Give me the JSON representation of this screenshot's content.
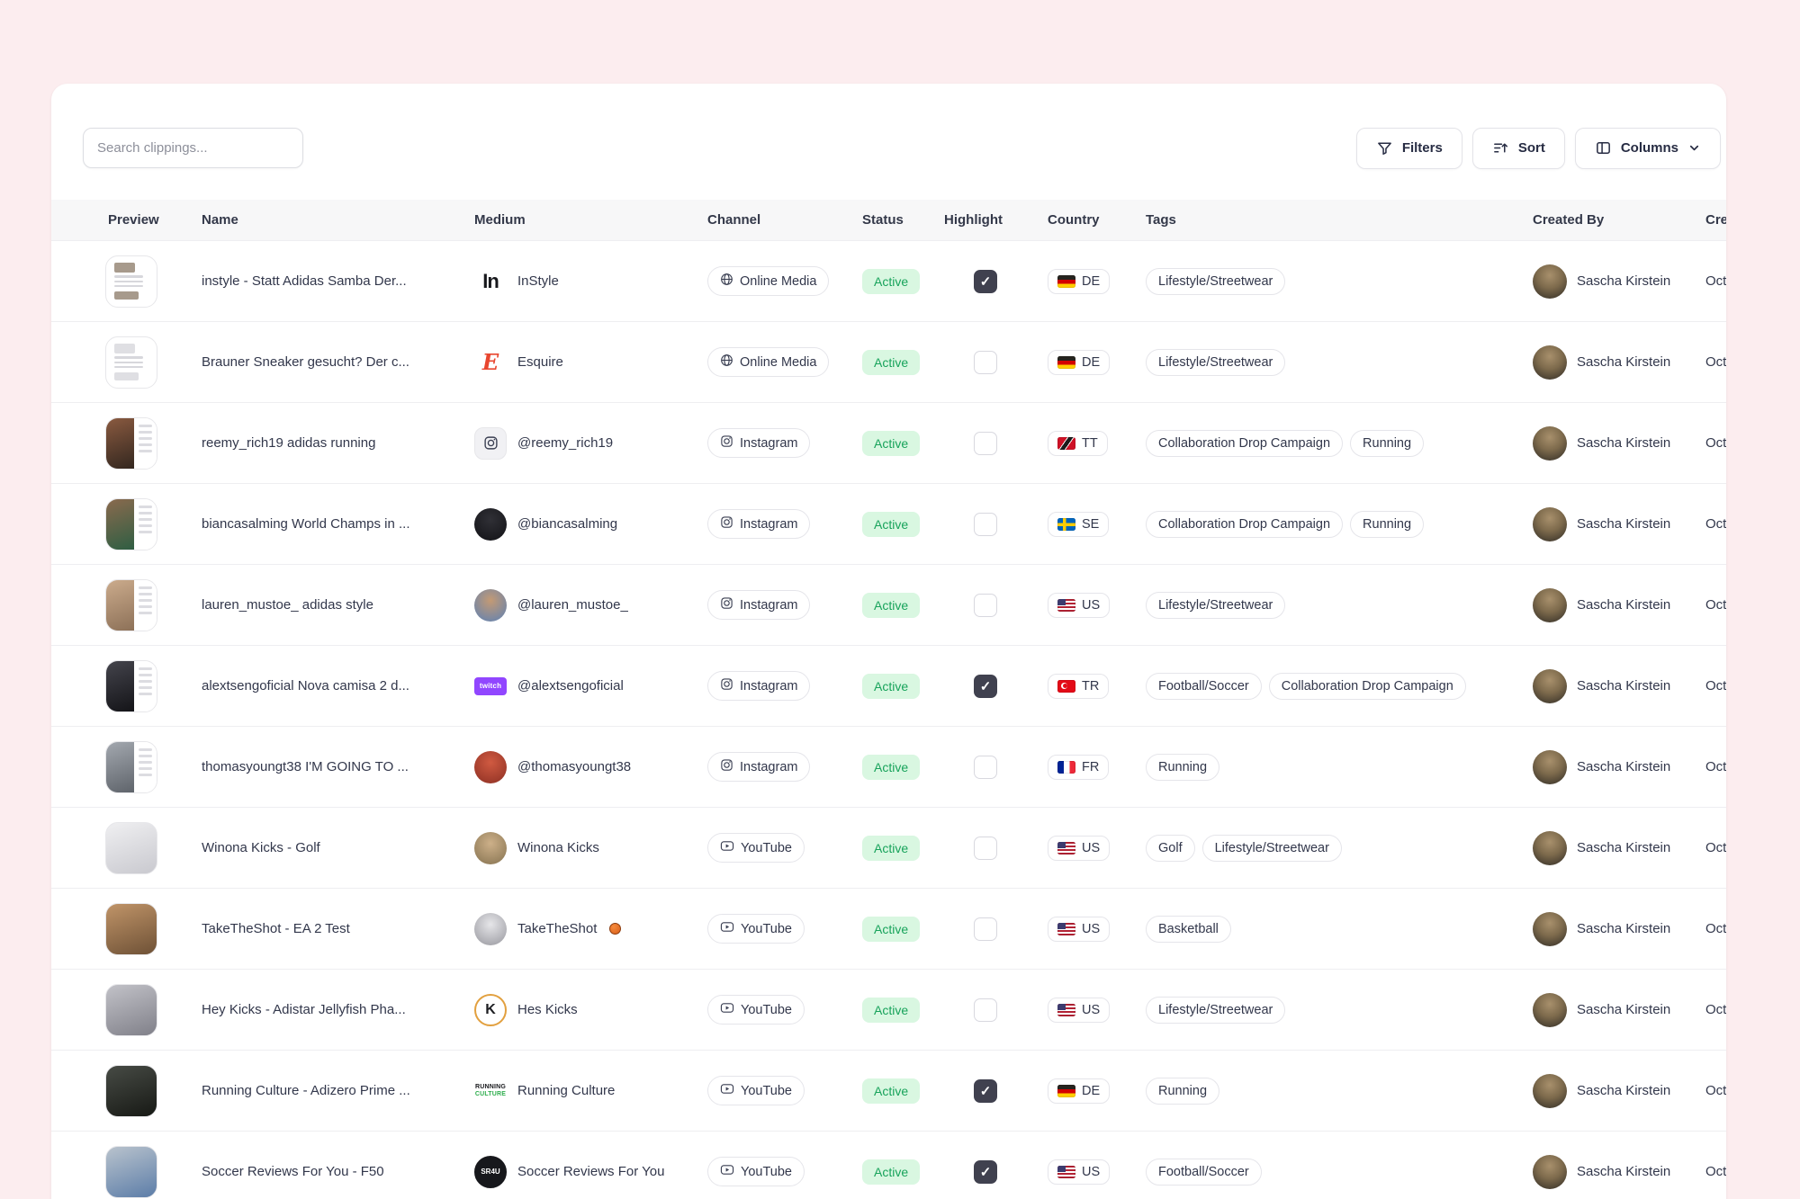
{
  "colors": {
    "page_bg": "#fcedef",
    "card_bg": "#ffffff",
    "text_primary": "#32374b",
    "text_header": "#333849",
    "thead_bg": "#f7f7f8",
    "row_border": "#eeeef1",
    "pill_border": "#e5e5ea",
    "status_bg": "#d9f7e1",
    "status_text": "#18a35b",
    "check_bg": "#40414f"
  },
  "icons": {
    "filters": "funnel-icon",
    "sort": "sort-lines-arrow-icon",
    "columns": "columns-layout-icon",
    "columns_chevron": "chevron-down-icon",
    "online_media": "globe-icon",
    "instagram": "instagram-icon",
    "youtube": "youtube-play-icon",
    "highlight_checked": "checkmark-icon"
  },
  "toolbar": {
    "search_placeholder": "Search clippings...",
    "filters_label": "Filters",
    "sort_label": "Sort",
    "columns_label": "Columns"
  },
  "table": {
    "columns": [
      "Preview",
      "Name",
      "Medium",
      "Channel",
      "Status",
      "Highlight",
      "Country",
      "Tags",
      "Created By",
      "Created At"
    ],
    "rows": [
      {
        "name": "instyle - Statt Adidas Samba Der...",
        "medium": "InStyle",
        "micon": {
          "kind": "text",
          "text": "In",
          "color": "#17181c"
        },
        "channel": "Online Media",
        "status": "Active",
        "highlight": true,
        "country": "DE",
        "tags": [
          "Lifestyle/Streetwear"
        ],
        "created_by": "Sascha Kirstein",
        "created_at": "Oct",
        "preview": {
          "kind": "article",
          "c1": "#a79a8c"
        }
      },
      {
        "name": "Brauner Sneaker gesucht? Der c...",
        "medium": "Esquire",
        "micon": {
          "kind": "serif",
          "text": "E",
          "color": "#e8462f"
        },
        "channel": "Online Media",
        "status": "Active",
        "highlight": false,
        "country": "DE",
        "tags": [
          "Lifestyle/Streetwear"
        ],
        "created_by": "Sascha Kirstein",
        "created_at": "Oct",
        "preview": {
          "kind": "article",
          "c1": "#dfdfe3"
        }
      },
      {
        "name": "reemy_rich19 adidas running",
        "medium": "@reemy_rich19",
        "micon": {
          "kind": "igbox"
        },
        "channel": "Instagram",
        "status": "Active",
        "highlight": false,
        "country": "TT",
        "tags": [
          "Collaboration Drop Campaign",
          "Running"
        ],
        "created_by": "Sascha Kirstein",
        "created_at": "Oct",
        "preview": {
          "kind": "split",
          "c1": "#8a5a40",
          "c2": "#33271f"
        }
      },
      {
        "name": "biancasalming World Champs in ...",
        "medium": "@biancasalming",
        "micon": {
          "kind": "avatar",
          "c1": "#303036",
          "c2": "#121216"
        },
        "channel": "Instagram",
        "status": "Active",
        "highlight": false,
        "country": "SE",
        "tags": [
          "Collaboration Drop Campaign",
          "Running"
        ],
        "created_by": "Sascha Kirstein",
        "created_at": "Oct",
        "preview": {
          "kind": "split",
          "c1": "#8a6a4e",
          "c2": "#2f5e43"
        }
      },
      {
        "name": "lauren_mustoe_ adidas style",
        "medium": "@lauren_mustoe_",
        "micon": {
          "kind": "avatar",
          "c1": "#c49a74",
          "c2": "#5c81b5"
        },
        "channel": "Instagram",
        "status": "Active",
        "highlight": false,
        "country": "US",
        "tags": [
          "Lifestyle/Streetwear"
        ],
        "created_by": "Sascha Kirstein",
        "created_at": "Oct",
        "preview": {
          "kind": "split",
          "c1": "#cbab8c",
          "c2": "#8d7158"
        }
      },
      {
        "name": "alextsengoficial Nova camisa 2 d...",
        "medium": "@alextsengoficial",
        "micon": {
          "kind": "twitch",
          "bg": "#9146ff",
          "text": "twitch"
        },
        "channel": "Instagram",
        "status": "Active",
        "highlight": true,
        "country": "TR",
        "tags": [
          "Football/Soccer",
          "Collaboration Drop Campaign"
        ],
        "created_by": "Sascha Kirstein",
        "created_at": "Oct",
        "preview": {
          "kind": "split",
          "c1": "#44444c",
          "c2": "#141418"
        }
      },
      {
        "name": "thomasyoungt38 I'M GOING TO ...",
        "medium": "@thomasyoungt38",
        "micon": {
          "kind": "avatar",
          "c1": "#d05a41",
          "c2": "#8c2f23"
        },
        "channel": "Instagram",
        "status": "Active",
        "highlight": false,
        "country": "FR",
        "tags": [
          "Running"
        ],
        "created_by": "Sascha Kirstein",
        "created_at": "Oct",
        "preview": {
          "kind": "split",
          "c1": "#a3a8af",
          "c2": "#5f646b"
        }
      },
      {
        "name": "Winona Kicks - Golf",
        "medium": "Winona Kicks",
        "micon": {
          "kind": "avatar",
          "c1": "#cdb089",
          "c2": "#857250"
        },
        "channel": "YouTube",
        "status": "Active",
        "highlight": false,
        "country": "US",
        "tags": [
          "Golf",
          "Lifestyle/Streetwear"
        ],
        "created_by": "Sascha Kirstein",
        "created_at": "Oct",
        "preview": {
          "kind": "photo",
          "c1": "#efeff1",
          "c2": "#c9c9cf"
        }
      },
      {
        "name": "TakeTheShot - EA 2 Test",
        "medium": "TakeTheShot",
        "medium_suffix": "basketball",
        "micon": {
          "kind": "avatar",
          "c1": "#e6e6e9",
          "c2": "#97979e"
        },
        "channel": "YouTube",
        "status": "Active",
        "highlight": false,
        "country": "US",
        "tags": [
          "Basketball"
        ],
        "created_by": "Sascha Kirstein",
        "created_at": "Oct",
        "preview": {
          "kind": "photo",
          "c1": "#c09468",
          "c2": "#6e5136"
        }
      },
      {
        "name": "Hey Kicks - Adistar Jellyfish Pha...",
        "medium": "Hes Kicks",
        "micon": {
          "kind": "ring",
          "ring": "#e2a03f",
          "text": "K",
          "color": "#1d1e22",
          "bg": "#ffffff"
        },
        "channel": "YouTube",
        "status": "Active",
        "highlight": false,
        "country": "US",
        "tags": [
          "Lifestyle/Streetwear"
        ],
        "created_by": "Sascha Kirstein",
        "created_at": "Oct",
        "preview": {
          "kind": "photo",
          "c1": "#c2c2c8",
          "c2": "#808089"
        }
      },
      {
        "name": "Running Culture - Adizero Prime ...",
        "medium": "Running Culture",
        "micon": {
          "kind": "wordmark",
          "line1": "RUNNING",
          "line2": "CULTURE",
          "color1": "#17181c",
          "color2": "#2fae4e"
        },
        "channel": "YouTube",
        "status": "Active",
        "highlight": true,
        "country": "DE",
        "tags": [
          "Running"
        ],
        "created_by": "Sascha Kirstein",
        "created_at": "Oct",
        "preview": {
          "kind": "photo",
          "c1": "#474b45",
          "c2": "#171915"
        }
      },
      {
        "name": "Soccer Reviews For You - F50",
        "medium": "Soccer Reviews For You",
        "micon": {
          "kind": "ring",
          "ring": "#17181c",
          "text": "SR4U",
          "color": "#ffffff",
          "bg": "#17181c"
        },
        "channel": "YouTube",
        "status": "Active",
        "highlight": true,
        "country": "US",
        "tags": [
          "Football/Soccer"
        ],
        "created_by": "Sascha Kirstein",
        "created_at": "Oct",
        "preview": {
          "kind": "photo",
          "c1": "#b9c3cd",
          "c2": "#5c7da8"
        }
      }
    ]
  }
}
